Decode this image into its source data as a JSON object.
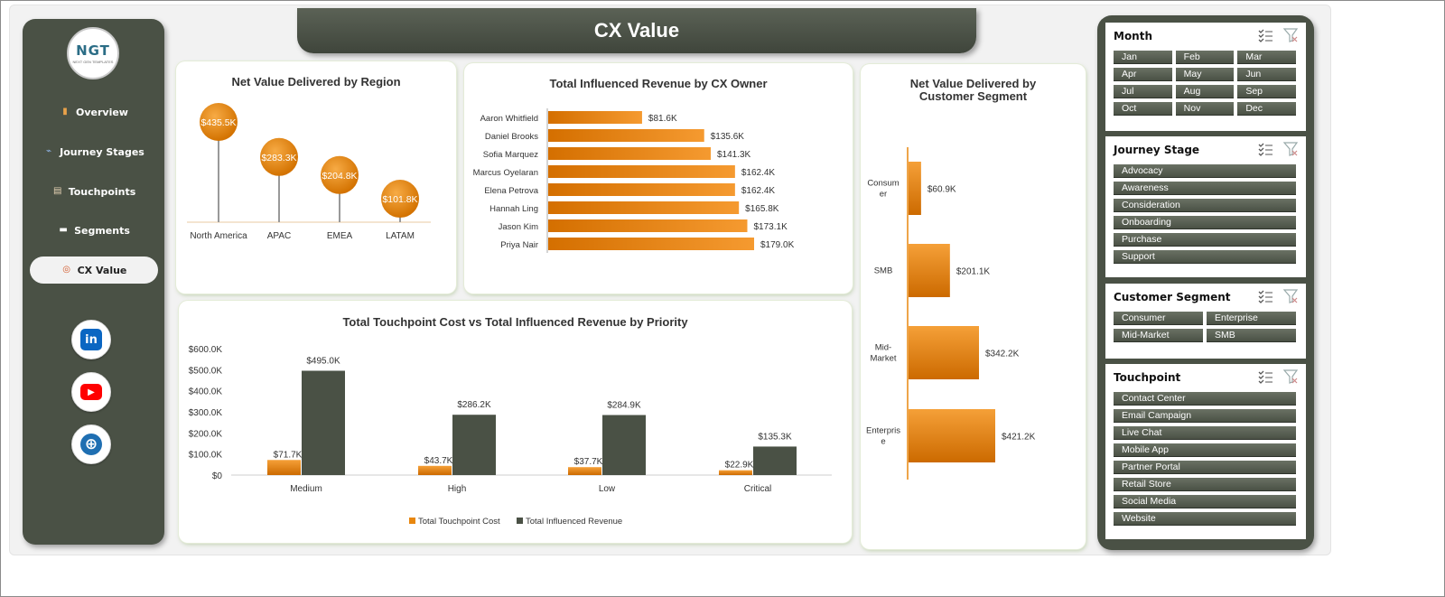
{
  "header": {
    "title": "CX Value"
  },
  "logo": {
    "text": "NGT",
    "subtext": "NEXT GEN TEMPLATES"
  },
  "sidebar": {
    "items": [
      {
        "label": "Overview",
        "icon": "chart-icon"
      },
      {
        "label": "Journey Stages",
        "icon": "line-chart-icon"
      },
      {
        "label": "Touchpoints",
        "icon": "clipboard-icon"
      },
      {
        "label": "Segments",
        "icon": "folder-icon"
      },
      {
        "label": "CX Value",
        "icon": "target-icon",
        "active": true
      }
    ],
    "social": [
      {
        "name": "linkedin-button",
        "glyph": "in",
        "color": "#0a66c2"
      },
      {
        "name": "youtube-button",
        "glyph": "▶",
        "color": "#ff0000"
      },
      {
        "name": "website-button",
        "glyph": "⊕",
        "color": "#1f6fb2"
      }
    ]
  },
  "charts": {
    "region": {
      "title": "Net Value Delivered by Region",
      "chart_data": {
        "type": "lollipop",
        "categories": [
          "North America",
          "APAC",
          "EMEA",
          "LATAM"
        ],
        "values": [
          435.5,
          283.3,
          204.8,
          101.8
        ],
        "labels": [
          "$435.5K",
          "$283.3K",
          "$204.8K",
          "$101.8K"
        ],
        "color": "#e8870f"
      }
    },
    "owner": {
      "title": "Total Influenced Revenue by CX Owner",
      "chart_data": {
        "type": "bar",
        "orientation": "horizontal",
        "categories": [
          "Aaron Whitfield",
          "Daniel Brooks",
          "Sofia Marquez",
          "Marcus Oyelaran",
          "Elena Petrova",
          "Hannah Ling",
          "Jason Kim",
          "Priya Nair"
        ],
        "values": [
          81.6,
          135.6,
          141.3,
          162.4,
          162.4,
          165.8,
          173.1,
          179.0
        ],
        "labels": [
          "$81.6K",
          "$135.6K",
          "$141.3K",
          "$162.4K",
          "$162.4K",
          "$165.8K",
          "$173.1K",
          "$179.0K"
        ],
        "color": "#e8870f"
      }
    },
    "segment": {
      "title_line1": "Net Value Delivered by",
      "title_line2": "Customer Segment",
      "chart_data": {
        "type": "bar",
        "orientation": "horizontal",
        "categories": [
          [
            "Consum",
            "er"
          ],
          [
            "SMB"
          ],
          [
            "Mid-",
            "Market"
          ],
          [
            "Enterpris",
            "e"
          ]
        ],
        "values": [
          60.9,
          201.1,
          342.2,
          421.2
        ],
        "labels": [
          "$60.9K",
          "$201.1K",
          "$342.2K",
          "$421.2K"
        ],
        "color": "#e8870f"
      }
    },
    "priority": {
      "title": "Total Touchpoint Cost vs Total Influenced Revenue by Priority",
      "chart_data": {
        "type": "bar",
        "categories": [
          "Medium",
          "High",
          "Low",
          "Critical"
        ],
        "ylim": [
          0,
          600
        ],
        "yticks": [
          "$0",
          "$100.0K",
          "$200.0K",
          "$300.0K",
          "$400.0K",
          "$500.0K",
          "$600.0K"
        ],
        "series": [
          {
            "name": "Total Touchpoint Cost",
            "values": [
              71.7,
              43.7,
              37.7,
              22.9
            ],
            "labels": [
              "$71.7K",
              "$43.7K",
              "$37.7K",
              "$22.9K"
            ],
            "color": "#e8870f"
          },
          {
            "name": "Total Influenced Revenue",
            "values": [
              495.0,
              286.2,
              284.9,
              135.3
            ],
            "labels": [
              "$495.0K",
              "$286.2K",
              "$284.9K",
              "$135.3K"
            ],
            "color": "#4a5145"
          }
        ]
      }
    }
  },
  "slicers": [
    {
      "title": "Month",
      "columns": 3,
      "items": [
        "Jan",
        "Feb",
        "Mar",
        "Apr",
        "May",
        "Jun",
        "Jul",
        "Aug",
        "Sep",
        "Oct",
        "Nov",
        "Dec"
      ]
    },
    {
      "title": "Journey Stage",
      "columns": 1,
      "items": [
        "Advocacy",
        "Awareness",
        "Consideration",
        "Onboarding",
        "Purchase",
        "Support"
      ]
    },
    {
      "title": "Customer Segment",
      "columns": 2,
      "items": [
        "Consumer",
        "Enterprise",
        "Mid-Market",
        "SMB"
      ]
    },
    {
      "title": "Touchpoint",
      "columns": 1,
      "items": [
        "Contact Center",
        "Email Campaign",
        "Live Chat",
        "Mobile App",
        "Partner Portal",
        "Retail Store",
        "Social Media",
        "Website"
      ]
    }
  ]
}
